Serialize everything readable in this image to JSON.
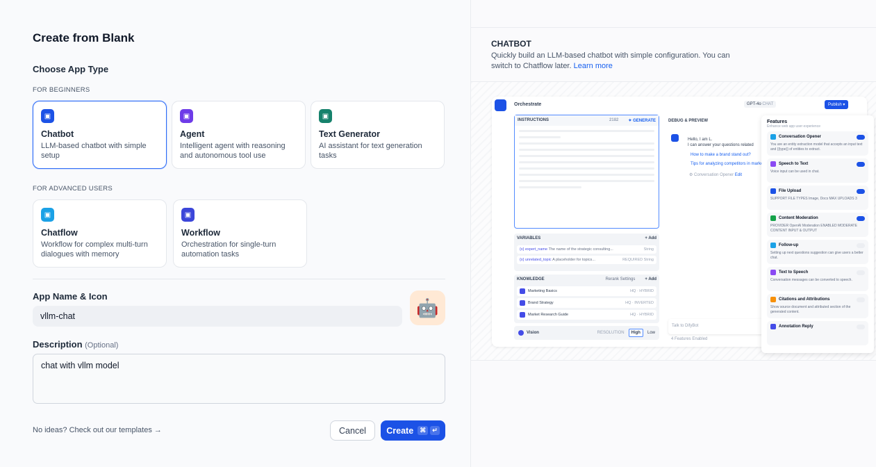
{
  "left": {
    "title": "Create from Blank",
    "choose_type": "Choose App Type",
    "beginners_label": "FOR BEGINNERS",
    "advanced_label": "FOR ADVANCED USERS",
    "beginner_types": [
      {
        "title": "Chatbot",
        "desc": "LLM-based chatbot with simple setup",
        "color": "#1c52e6",
        "icon": "chat-bubble-icon",
        "selected": true
      },
      {
        "title": "Agent",
        "desc": "Intelligent agent with reasoning and autonomous tool use",
        "color": "#6e3be8",
        "icon": "robot-head-icon"
      },
      {
        "title": "Text Generator",
        "desc": "AI assistant for text generation tasks",
        "color": "#16826c",
        "icon": "text-plus-icon"
      }
    ],
    "advanced_types": [
      {
        "title": "Chatflow",
        "desc": "Workflow for complex multi-turn dialogues with memory",
        "color": "#1ba1e6",
        "icon": "chatflow-icon"
      },
      {
        "title": "Workflow",
        "desc": "Orchestration for single-turn automation tasks",
        "color": "#3c46d9",
        "icon": "workflow-icon"
      }
    ],
    "app_name_label": "App Name & Icon",
    "app_name_value": "vllm-chat",
    "app_icon": "🤖",
    "description_label": "Description",
    "description_optional": "(Optional)",
    "description_value": "chat with vllm model",
    "templates_link": "No ideas? Check out our templates →",
    "cancel": "Cancel",
    "create": "Create",
    "create_shortcut": [
      "⌘",
      "↵"
    ]
  },
  "right": {
    "title": "CHATBOT",
    "desc": "Quickly build an LLM-based chatbot with simple configuration. You can switch to Chatflow later.",
    "learn_more": "Learn more",
    "preview": {
      "header": "Orchestrate",
      "model": "GPT-4o",
      "model_tag": "CHAT",
      "publish": "Publish ▾",
      "instructions": "INSTRUCTIONS",
      "char_count": "2182",
      "generate": "✦ GENERATE",
      "variables": "VARIABLES",
      "add": "+ Add",
      "vars": [
        {
          "name": "{x} expert_name",
          "desc": "The name of the strategic consulting...",
          "type": "String"
        },
        {
          "name": "{x} unrelated_topic",
          "desc": "A placeholder for topics...",
          "type": "REQUIRED  String"
        }
      ],
      "knowledge": "KNOWLEDGE",
      "rerank": "Rerank Settings",
      "docs": [
        {
          "name": "Marketing Basics",
          "tag": "HQ · HYBRID"
        },
        {
          "name": "Brand Strategy",
          "tag": "HQ · INVERTED"
        },
        {
          "name": "Market Research Guide",
          "tag": "HQ · HYBRID"
        }
      ],
      "vision": "Vision",
      "resolution": "RESOLUTION",
      "high": "High",
      "low": "Low",
      "debug": "DEBUG & PREVIEW",
      "greeting1": "Hello, I am L.",
      "greeting2": "I can answer your questions related",
      "q1": "How to make a brand stand out?",
      "q2": "Tips for analyzing competitors in market",
      "opener": "⚙ Conversation Opener",
      "edit": "Edit",
      "chat_placeholder": "Talk to DifyBot",
      "features_enabled": "4 Features Enabled",
      "features_title": "Features",
      "features_sub": "Enhance web app user experience",
      "features": [
        {
          "name": "Conversation Opener",
          "desc": "You are an entity extraction model that accepts an input text and {{type}} of entities to extract.",
          "on": true,
          "color": "#1ba1e6"
        },
        {
          "name": "Speech to Text",
          "desc": "Voice input can be used in chat.",
          "on": true,
          "color": "#8a4af3"
        },
        {
          "name": "File Upload",
          "desc": "SUPPORT FILE TYPES Image, Docs   MAX UPLOADS 3",
          "on": true,
          "color": "#1c52e6"
        },
        {
          "name": "Content Moderation",
          "desc": "PROVIDER OpenAI Moderation   ENABLED MODERATE CONTENT INPUT & OUTPUT",
          "on": true,
          "color": "#16a34a"
        },
        {
          "name": "Follow-up",
          "desc": "Setting up next questions suggestion can give users a better chat.",
          "on": false,
          "color": "#1ba1e6"
        },
        {
          "name": "Text to Speech",
          "desc": "Conversation messages can be converted to speech.",
          "on": false,
          "color": "#8a4af3"
        },
        {
          "name": "Citations and Attributions",
          "desc": "Show source document and attributed section of the generated content.",
          "on": false,
          "color": "#f79009"
        },
        {
          "name": "Annotation Reply",
          "desc": "",
          "on": false,
          "color": "#444ce7"
        }
      ]
    }
  },
  "colors": {
    "primary": "#1c52e6",
    "link": "#155eef"
  }
}
